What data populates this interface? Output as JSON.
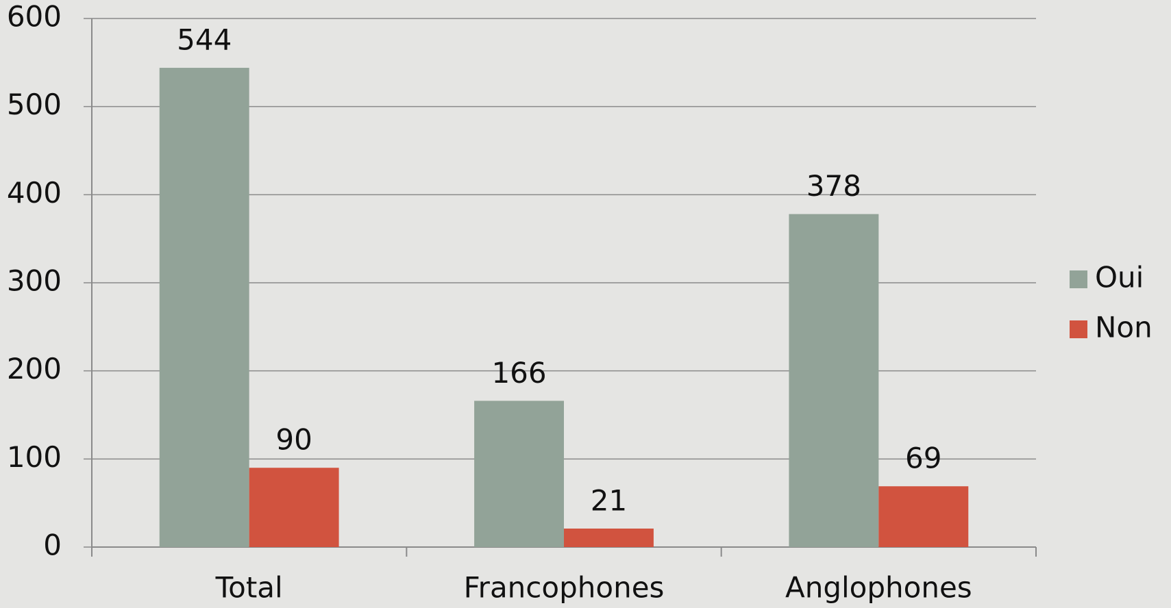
{
  "chart_data": {
    "type": "bar",
    "categories": [
      "Total",
      "Francophones",
      "Anglophones"
    ],
    "series": [
      {
        "name": "Oui",
        "color": "#92a398",
        "values": [
          544,
          166,
          378
        ]
      },
      {
        "name": "Non",
        "color": "#d1533f",
        "values": [
          90,
          21,
          69
        ]
      }
    ],
    "ylim": [
      0,
      600
    ],
    "yticks": [
      0,
      100,
      200,
      300,
      400,
      500,
      600
    ],
    "grid": true,
    "legend": "right"
  }
}
